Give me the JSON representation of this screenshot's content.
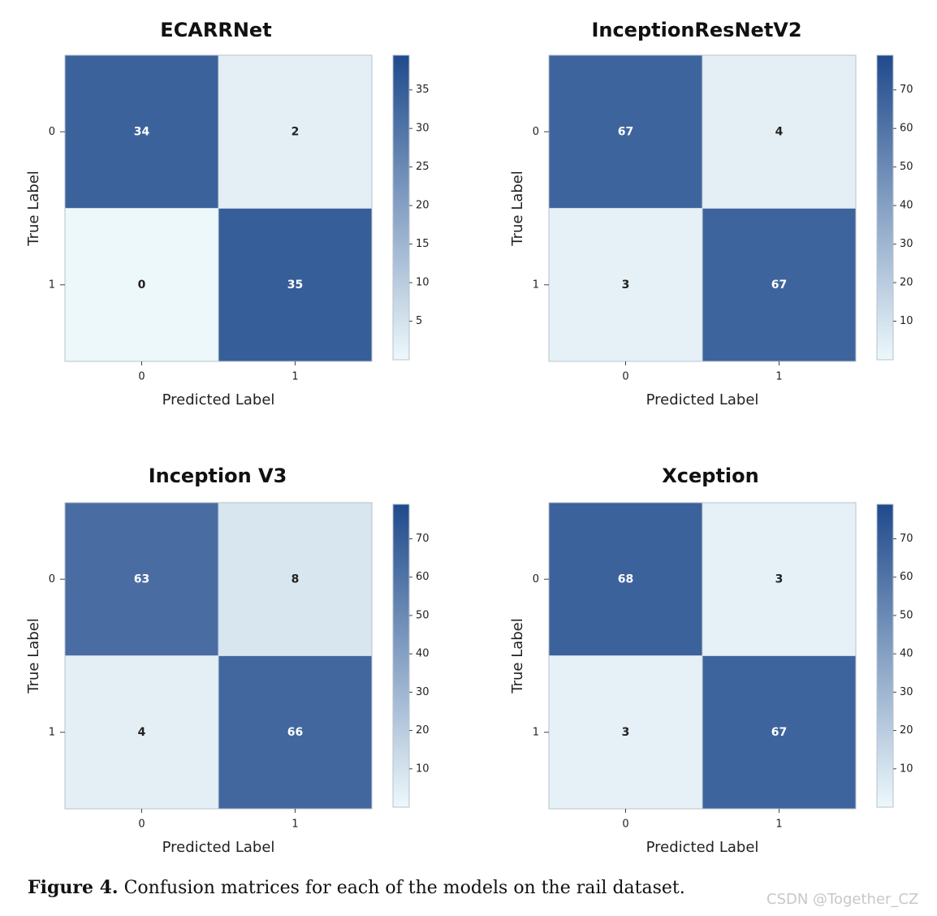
{
  "figure": {
    "caption_label": "Figure 4.",
    "caption_text": "Confusion matrices for each of the models on the rail dataset.",
    "watermark": "CSDN @Together_CZ"
  },
  "colors": {
    "low": "#edf8fb",
    "high": "#1f4a8c"
  },
  "chart_data": [
    {
      "type": "heatmap",
      "title": "ECARRNet",
      "xlabel": "Predicted Label",
      "ylabel": "True Label",
      "x_categories": [
        "0",
        "1"
      ],
      "y_categories": [
        "0",
        "1"
      ],
      "matrix": [
        [
          34,
          2
        ],
        [
          0,
          35
        ]
      ],
      "colorbar": {
        "min": 0,
        "max": 39.5,
        "ticks": [
          5,
          10,
          15,
          20,
          25,
          30,
          35
        ]
      }
    },
    {
      "type": "heatmap",
      "title": "InceptionResNetV2",
      "xlabel": "Predicted Label",
      "ylabel": "True Label",
      "x_categories": [
        "0",
        "1"
      ],
      "y_categories": [
        "0",
        "1"
      ],
      "matrix": [
        [
          67,
          4
        ],
        [
          3,
          67
        ]
      ],
      "colorbar": {
        "min": 0,
        "max": 79,
        "ticks": [
          10,
          20,
          30,
          40,
          50,
          60,
          70
        ]
      }
    },
    {
      "type": "heatmap",
      "title": "Inception V3",
      "xlabel": "Predicted Label",
      "ylabel": "True Label",
      "x_categories": [
        "0",
        "1"
      ],
      "y_categories": [
        "0",
        "1"
      ],
      "matrix": [
        [
          63,
          8
        ],
        [
          4,
          66
        ]
      ],
      "colorbar": {
        "min": 0,
        "max": 79,
        "ticks": [
          10,
          20,
          30,
          40,
          50,
          60,
          70
        ]
      }
    },
    {
      "type": "heatmap",
      "title": "Xception",
      "xlabel": "Predicted Label",
      "ylabel": "True Label",
      "x_categories": [
        "0",
        "1"
      ],
      "y_categories": [
        "0",
        "1"
      ],
      "matrix": [
        [
          68,
          3
        ],
        [
          3,
          67
        ]
      ],
      "colorbar": {
        "min": 0,
        "max": 79,
        "ticks": [
          10,
          20,
          30,
          40,
          50,
          60,
          70
        ]
      }
    }
  ]
}
